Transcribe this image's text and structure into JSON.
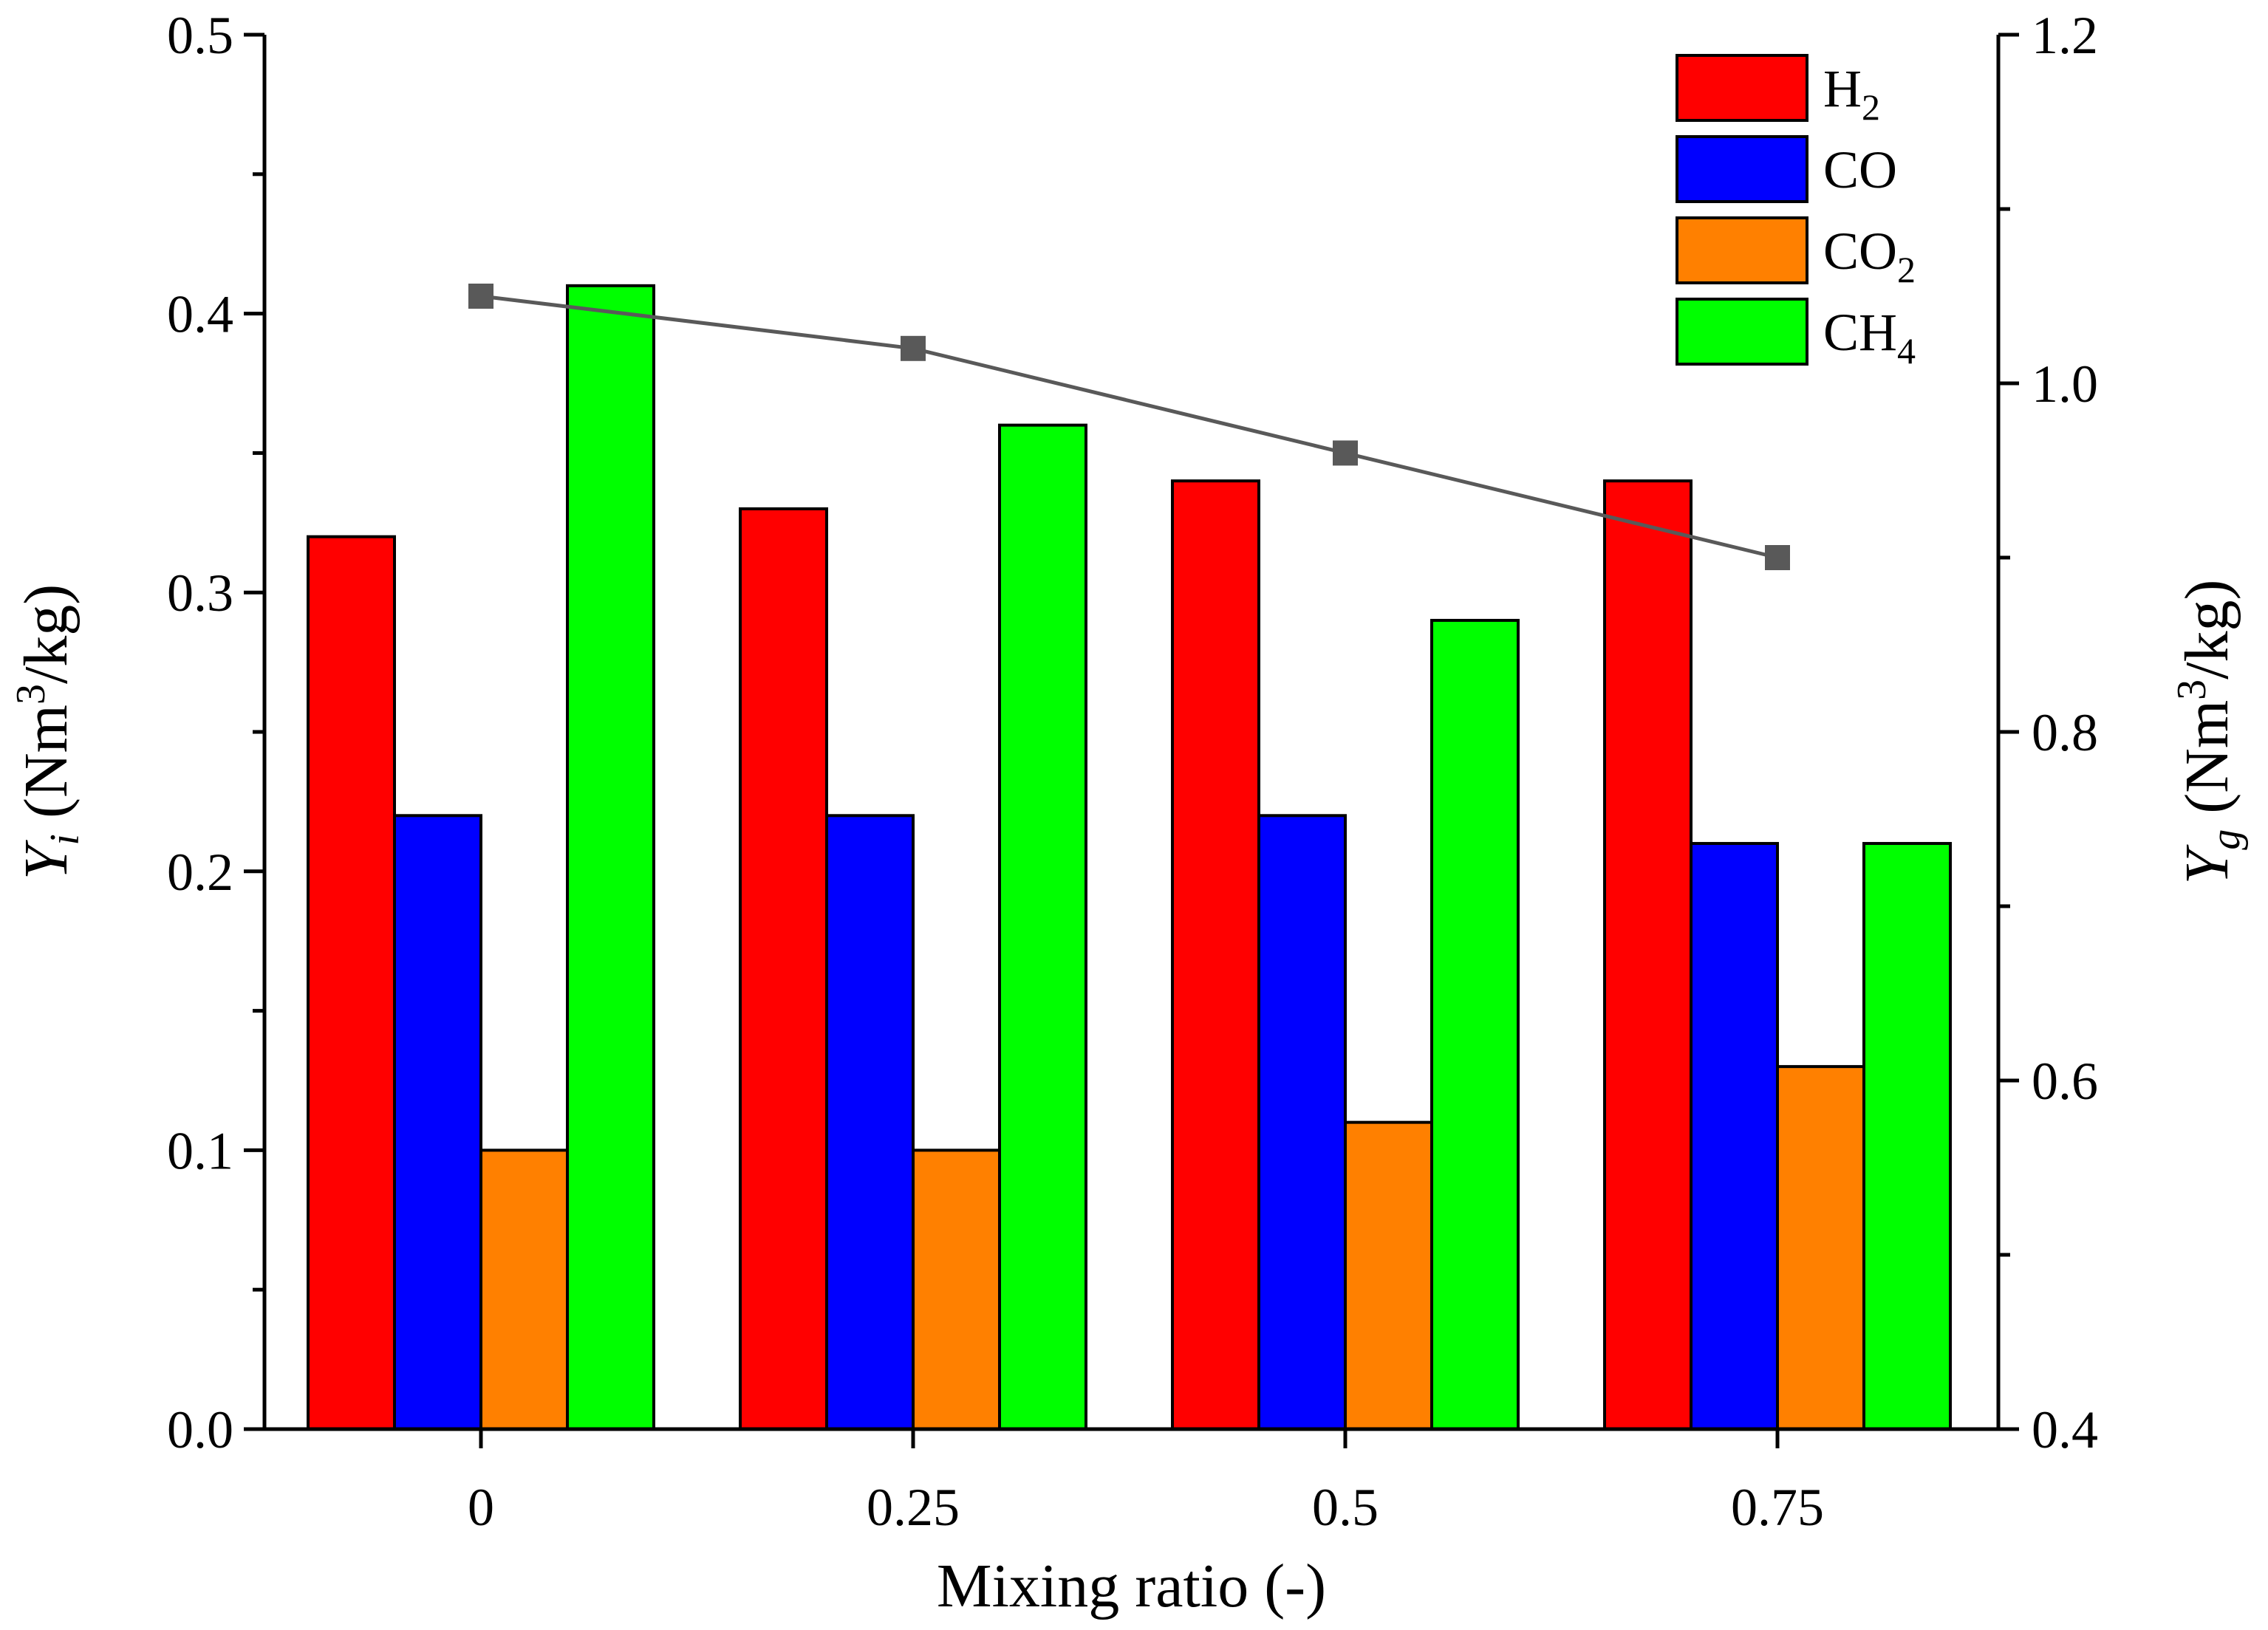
{
  "chart_data": {
    "type": "bar",
    "categories": [
      "0",
      "0.25",
      "0.5",
      "0.75"
    ],
    "series": [
      {
        "name": "H",
        "sub": "2",
        "color": "#ff0000",
        "values": [
          0.32,
          0.33,
          0.34,
          0.34
        ]
      },
      {
        "name": "CO",
        "sub": "",
        "color": "#0000ff",
        "values": [
          0.22,
          0.22,
          0.22,
          0.21
        ]
      },
      {
        "name": "CO",
        "sub": "2",
        "color": "#ff8000",
        "values": [
          0.1,
          0.1,
          0.11,
          0.13
        ]
      },
      {
        "name": "CH",
        "sub": "4",
        "color": "#00ff00",
        "values": [
          0.41,
          0.36,
          0.29,
          0.21
        ]
      }
    ],
    "line_series": {
      "name": "Yg",
      "color": "#595959",
      "values": [
        1.05,
        1.02,
        0.96,
        0.9
      ]
    },
    "xlabel": "Mixing ratio (-)",
    "ylabel_left": {
      "symbol": "Y",
      "sub": "i",
      "text": " (Nm",
      "sup": "3",
      "text2": "/kg)"
    },
    "ylabel_right": {
      "symbol": "Y",
      "sub": "g",
      "text": " (Nm",
      "sup": "3",
      "text2": "/kg)"
    },
    "ylim_left": [
      0.0,
      0.5
    ],
    "ylim_right": [
      0.4,
      1.2
    ],
    "yticks_left": [
      "0.0",
      "0.1",
      "0.2",
      "0.3",
      "0.4",
      "0.5"
    ],
    "yticks_right": [
      "0.4",
      "0.6",
      "0.8",
      "1.0",
      "1.2"
    ],
    "legend_position": "top-right"
  }
}
